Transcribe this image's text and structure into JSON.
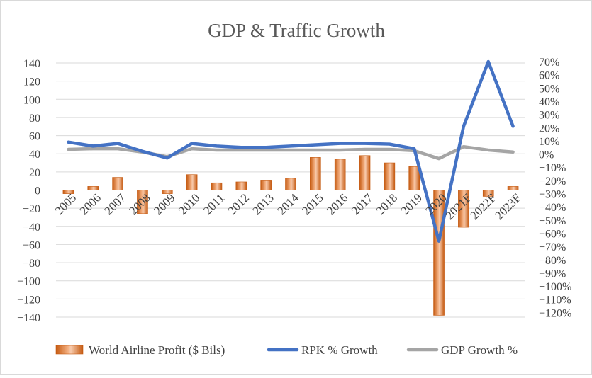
{
  "chart_data": {
    "type": "bar+line",
    "title": "GDP & Traffic  Growth",
    "categories": [
      "2005",
      "2006",
      "2007",
      "2008",
      "2009",
      "2010",
      "2011",
      "2012",
      "2013",
      "2014",
      "2015",
      "2016",
      "2017",
      "2018",
      "2019",
      "2020",
      "2021F",
      "2022F",
      "2023F"
    ],
    "left_axis": {
      "min": -140,
      "max": 140,
      "step": 20,
      "ticks": [
        "140",
        "120",
        "100",
        "80",
        "60",
        "40",
        "20",
        "0",
        "−20",
        "−40",
        "−60",
        "−80",
        "−100",
        "−120",
        "−140"
      ]
    },
    "right_axis": {
      "min": -120,
      "max": 70,
      "step": 10,
      "ticks": [
        "70%",
        "60%",
        "50%",
        "40%",
        "30%",
        "20%",
        "10%",
        "0%",
        "−10%",
        "−20%",
        "−30%",
        "−40%",
        "−50%",
        "−60%",
        "−70%",
        "−80%",
        "−90%",
        "−100%",
        "−110%",
        "−120%"
      ]
    },
    "series": [
      {
        "name": "World Airline Profit ($ Bils)",
        "type": "bar",
        "axis": "left",
        "color": "#ed7d31",
        "values": [
          -4,
          4,
          14,
          -26,
          -4,
          17,
          8,
          9,
          11,
          13,
          36,
          34,
          38,
          30,
          26,
          -138,
          -41,
          -7,
          4
        ]
      },
      {
        "name": "RPK % Growth",
        "type": "line",
        "axis": "right",
        "color": "#4472c4",
        "values": [
          9,
          6,
          8,
          2,
          -3,
          8,
          6,
          5,
          5,
          6,
          7,
          8,
          8,
          7.5,
          4,
          -66,
          21,
          70,
          21
        ]
      },
      {
        "name": "GDP Growth %",
        "type": "line",
        "axis": "right",
        "color": "#a5a5a5",
        "values": [
          3.5,
          4,
          4,
          1.5,
          -2,
          4,
          3,
          3,
          3,
          3,
          3,
          3,
          3.5,
          3.5,
          2.5,
          -3.5,
          5.5,
          3,
          1.5
        ]
      }
    ],
    "legend_position": "bottom",
    "grid": "horizontal"
  }
}
